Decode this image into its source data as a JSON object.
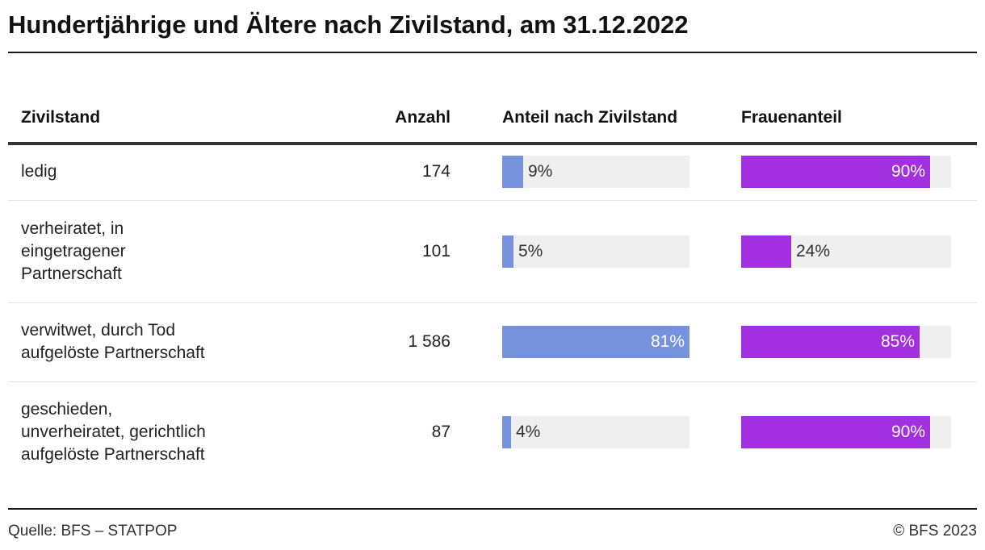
{
  "title": "Hundertjährige und Ältere nach Zivilstand, am 31.12.2022",
  "columns": {
    "category": "Zivilstand",
    "count": "Anzahl",
    "share": "Anteil nach Zivilstand",
    "women": "Frauenanteil"
  },
  "chart_data": {
    "type": "table",
    "title": "Hundertjährige und Ältere nach Zivilstand, am 31.12.2022",
    "rows": [
      {
        "category_lines": [
          "ledig"
        ],
        "count": "174",
        "share": 9,
        "share_label": "9%",
        "women": 90,
        "women_label": "90%"
      },
      {
        "category_lines": [
          "verheiratet, in",
          "eingetragener",
          "Partnerschaft"
        ],
        "count": "101",
        "share": 5,
        "share_label": "5%",
        "women": 24,
        "women_label": "24%"
      },
      {
        "category_lines": [
          "verwitwet, durch Tod",
          "aufgelöste Partnerschaft"
        ],
        "count": "1 586",
        "share": 81,
        "share_label": "81%",
        "women": 85,
        "women_label": "85%"
      },
      {
        "category_lines": [
          "geschieden,",
          "unverheiratet, gerichtlich",
          "aufgelöste Partnerschaft"
        ],
        "count": "87",
        "share": 4,
        "share_label": "4%",
        "women": 90,
        "women_label": "90%"
      }
    ],
    "share_max": 81,
    "women_max": 100,
    "colors": {
      "share": "#7692dc",
      "women": "#a22fe0",
      "track": "#efefef"
    }
  },
  "footer": {
    "source": "Quelle: BFS – STATPOP",
    "copyright": "© BFS 2023"
  }
}
